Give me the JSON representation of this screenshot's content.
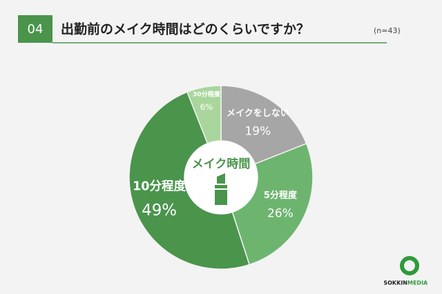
{
  "header": {
    "number": "04",
    "title": "出勤前のメイク時間はどのくらいですか？",
    "note": "(n=43)"
  },
  "chart_data": {
    "type": "donut",
    "center_label": "メイク時間",
    "categories": [
      "メイクをしない",
      "5分程度",
      "10分程度",
      "30分程度"
    ],
    "values": [
      19,
      26,
      49,
      6
    ],
    "value_labels": [
      "19%",
      "26%",
      "49%",
      "6%"
    ],
    "colors": [
      "#a6a6a6",
      "#6db56f",
      "#4a944c",
      "#a9d69c"
    ]
  },
  "logo": {
    "part1": "SOKKIN",
    "part2": "MEDIA"
  }
}
